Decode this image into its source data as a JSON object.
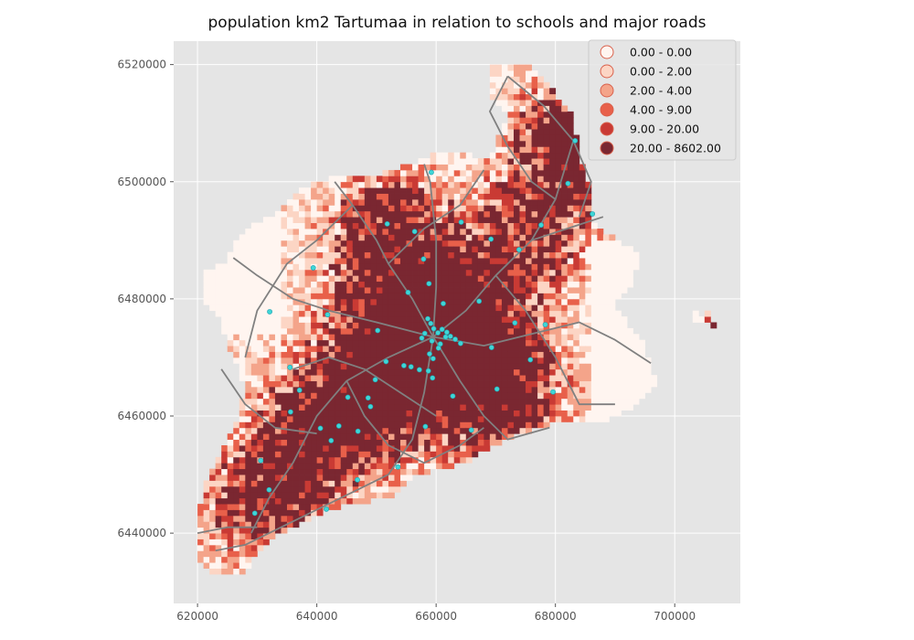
{
  "title": "population km2 Tartumaa in relation to schools and major roads",
  "axes": {
    "x_ticks": [
      {
        "value": 620000,
        "label": "620000"
      },
      {
        "value": 640000,
        "label": "640000"
      },
      {
        "value": 660000,
        "label": "660000"
      },
      {
        "value": 680000,
        "label": "680000"
      },
      {
        "value": 700000,
        "label": "700000"
      }
    ],
    "y_ticks": [
      {
        "value": 6440000,
        "label": "6440000"
      },
      {
        "value": 6460000,
        "label": "6460000"
      },
      {
        "value": 6480000,
        "label": "6480000"
      },
      {
        "value": 6500000,
        "label": "6500000"
      },
      {
        "value": 6520000,
        "label": "6520000"
      }
    ],
    "xlim": [
      616000,
      711000
    ],
    "ylim": [
      6428000,
      6524000
    ],
    "grid": true,
    "background_color": "#e5e5e5"
  },
  "legend": {
    "placement": "top-right",
    "entries": [
      {
        "label": "0.00 - 0.00",
        "color": "#fff5f0"
      },
      {
        "label": "0.00 - 2.00",
        "color": "#fcd5c4"
      },
      {
        "label": "2.00 - 4.00",
        "color": "#f4a48a"
      },
      {
        "label": "4.00 - 9.00",
        "color": "#e8604a"
      },
      {
        "label": "9.00 - 20.00",
        "color": "#c93a34"
      },
      {
        "label": "20.00 - 8602.00",
        "color": "#7a2731"
      }
    ]
  },
  "layers": {
    "roads_color": "#808080",
    "schools_color": "#3fd6d6",
    "schools_edge_color": "#1e9fb0"
  },
  "chart_data": {
    "type": "map",
    "title": "population km2 Tartumaa in relation to schools and major roads",
    "xlim": [
      616000,
      711000
    ],
    "ylim": [
      6428000,
      6524000
    ],
    "classes": [
      "0.00 - 0.00",
      "0.00 - 2.00",
      "2.00 - 4.00",
      "4.00 - 9.00",
      "9.00 - 20.00",
      "20.00 - 8602.00"
    ],
    "schools": [
      [
        658600,
        6476600
      ],
      [
        659100,
        6475800
      ],
      [
        659600,
        6474900
      ],
      [
        660300,
        6474200
      ],
      [
        661000,
        6474800
      ],
      [
        661800,
        6474300
      ],
      [
        662400,
        6473600
      ],
      [
        658100,
        6474100
      ],
      [
        657600,
        6473300
      ],
      [
        659300,
        6472800
      ],
      [
        660700,
        6472300
      ],
      [
        661600,
        6473500
      ],
      [
        663200,
        6473100
      ],
      [
        664100,
        6472400
      ],
      [
        658900,
        6470600
      ],
      [
        659500,
        6469800
      ],
      [
        658700,
        6467700
      ],
      [
        659400,
        6466500
      ],
      [
        657200,
        6467900
      ],
      [
        655800,
        6468400
      ],
      [
        654600,
        6468600
      ],
      [
        660400,
        6471600
      ],
      [
        661200,
        6479200
      ],
      [
        658800,
        6482600
      ],
      [
        657900,
        6486800
      ],
      [
        659200,
        6501600
      ],
      [
        651800,
        6492800
      ],
      [
        639400,
        6485300
      ],
      [
        632100,
        6477800
      ],
      [
        635500,
        6468300
      ],
      [
        637100,
        6464400
      ],
      [
        635600,
        6460700
      ],
      [
        640600,
        6457900
      ],
      [
        642400,
        6455800
      ],
      [
        643700,
        6458300
      ],
      [
        646900,
        6457400
      ],
      [
        649000,
        6461600
      ],
      [
        648600,
        6463100
      ],
      [
        649800,
        6466200
      ],
      [
        651600,
        6469300
      ],
      [
        650200,
        6474600
      ],
      [
        653600,
        6451300
      ],
      [
        641600,
        6444100
      ],
      [
        632000,
        6447400
      ],
      [
        630600,
        6452400
      ],
      [
        629600,
        6443400
      ],
      [
        646800,
        6449100
      ],
      [
        665900,
        6457600
      ],
      [
        669300,
        6471700
      ],
      [
        670200,
        6464600
      ],
      [
        675800,
        6469600
      ],
      [
        678300,
        6475600
      ],
      [
        679600,
        6464100
      ],
      [
        683300,
        6507000
      ],
      [
        682100,
        6499700
      ],
      [
        686200,
        6494500
      ],
      [
        664200,
        6493100
      ],
      [
        669200,
        6490200
      ],
      [
        673900,
        6488400
      ],
      [
        677600,
        6492600
      ],
      [
        655300,
        6481100
      ],
      [
        662800,
        6463400
      ],
      [
        658200,
        6458200
      ],
      [
        645200,
        6463200
      ],
      [
        641800,
        6477300
      ],
      [
        656400,
        6491500
      ],
      [
        667200,
        6479600
      ],
      [
        673200,
        6475900
      ]
    ]
  }
}
